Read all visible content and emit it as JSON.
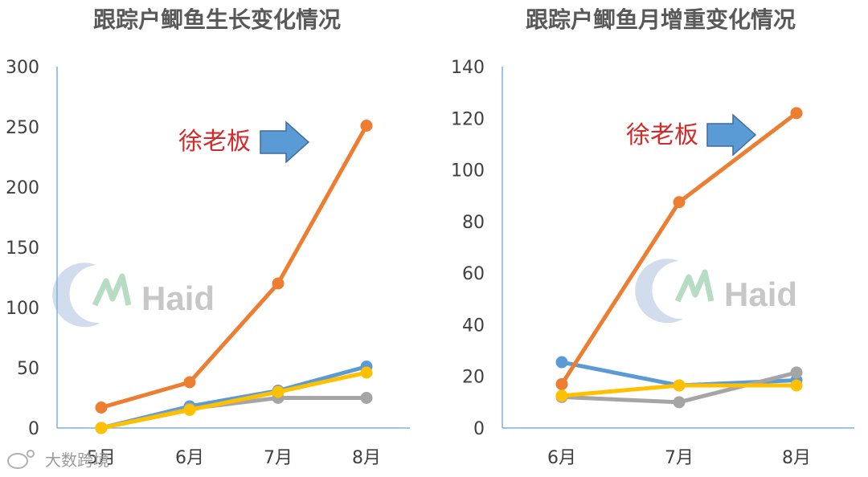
{
  "colors": {
    "blue": "#5b9bd5",
    "orange": "#ed7d31",
    "gray": "#a5a5a5",
    "yellow": "#ffc000",
    "axis": "#7fb0d8",
    "annotation": "#d42a2a",
    "arrow": "#5b9bd5"
  },
  "watermark": {
    "brand": "Haid",
    "logo_icon": "haid-logo-icon"
  },
  "footer": {
    "text": "大数跨境",
    "icon": "weibo-icon"
  },
  "chart_data": [
    {
      "type": "line",
      "title": "跟踪户鲫鱼生长变化情况",
      "categories": [
        "5月",
        "6月",
        "7月",
        "8月"
      ],
      "ylim": [
        0,
        300
      ],
      "yticks": [
        0,
        50,
        100,
        150,
        200,
        250,
        300
      ],
      "grid": false,
      "annotation": {
        "text": "徐老板",
        "icon": "right-arrow-icon"
      },
      "series": [
        {
          "values": [
            0,
            18,
            31,
            51
          ],
          "color": "#5b9bd5"
        },
        {
          "values": [
            17,
            38,
            120,
            251
          ],
          "color": "#ed7d31"
        },
        {
          "values": [
            0,
            16,
            25,
            25
          ],
          "color": "#a5a5a5"
        },
        {
          "values": [
            0,
            15,
            30,
            46
          ],
          "color": "#ffc000"
        }
      ]
    },
    {
      "type": "line",
      "title": "跟踪户鲫鱼月增重变化情况",
      "categories": [
        "6月",
        "7月",
        "8月"
      ],
      "ylim": [
        0,
        140
      ],
      "yticks": [
        0,
        20,
        40,
        60,
        80,
        100,
        120,
        140
      ],
      "grid": false,
      "annotation": {
        "text": "徐老板",
        "icon": "right-arrow-icon"
      },
      "series": [
        {
          "values": [
            25.5,
            16.5,
            18.5
          ],
          "color": "#5b9bd5"
        },
        {
          "values": [
            17,
            87.5,
            122
          ],
          "color": "#ed7d31"
        },
        {
          "values": [
            12,
            10,
            21.5
          ],
          "color": "#a5a5a5"
        },
        {
          "values": [
            12.5,
            16.5,
            16.5
          ],
          "color": "#ffc000"
        }
      ]
    }
  ]
}
